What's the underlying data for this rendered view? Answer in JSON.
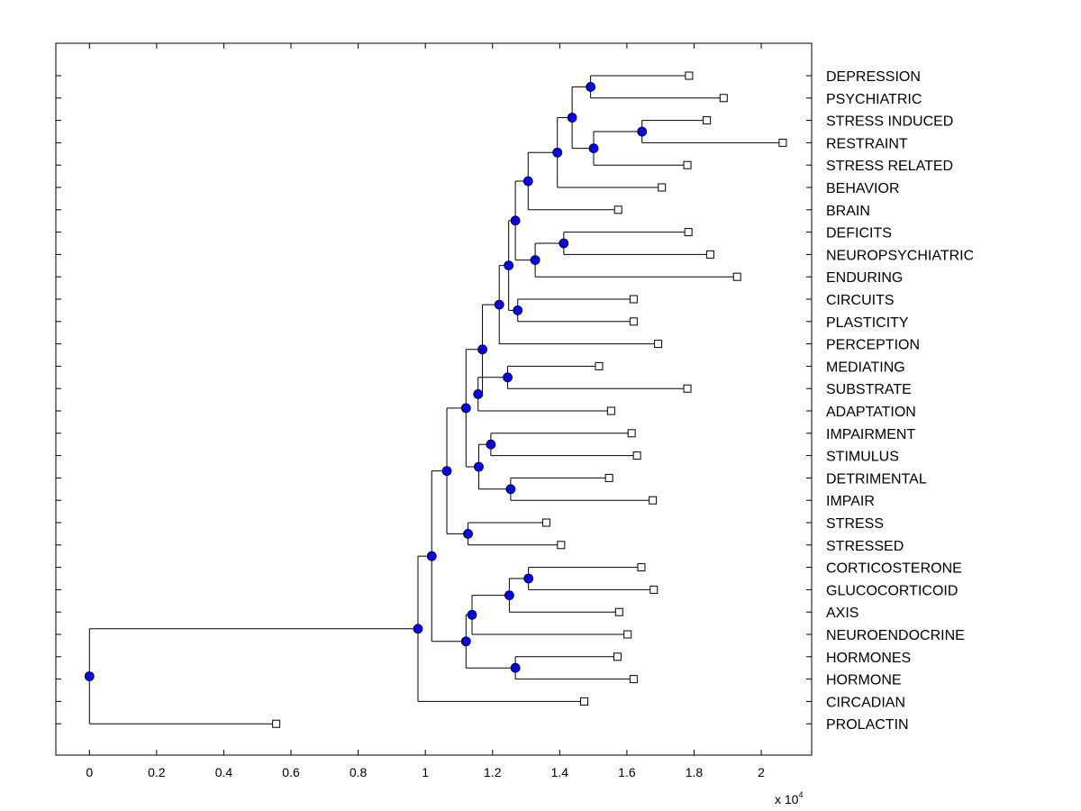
{
  "chart_data": {
    "type": "dendrogram",
    "x_axis": {
      "range": [
        -0.1,
        2.15
      ],
      "ticks": [
        0,
        0.2,
        0.4,
        0.6,
        0.8,
        1,
        1.2,
        1.4,
        1.6,
        1.8,
        2
      ],
      "tick_labels": [
        "0",
        "0.2",
        "0.4",
        "0.6",
        "0.8",
        "1",
        "1.2",
        "1.4",
        "1.6",
        "1.8",
        "2"
      ],
      "exponent_prefix": "x 10",
      "exponent_power": "4"
    },
    "leaves": [
      {
        "id": "l1",
        "label": "DEPRESSION",
        "x": 1.785
      },
      {
        "id": "l2",
        "label": "PSYCHIATRIC",
        "x": 1.888
      },
      {
        "id": "l3",
        "label": "STRESS INDUCED",
        "x": 1.838
      },
      {
        "id": "l4",
        "label": "RESTRAINT",
        "x": 2.064
      },
      {
        "id": "l5",
        "label": "STRESS RELATED",
        "x": 1.78
      },
      {
        "id": "l6",
        "label": "BEHAVIOR",
        "x": 1.704
      },
      {
        "id": "l7",
        "label": "BRAIN",
        "x": 1.574
      },
      {
        "id": "l8",
        "label": "DEFICITS",
        "x": 1.783
      },
      {
        "id": "l9",
        "label": "NEUROPSYCHIATRIC",
        "x": 1.848
      },
      {
        "id": "l10",
        "label": "ENDURING",
        "x": 1.928
      },
      {
        "id": "l11",
        "label": "CIRCUITS",
        "x": 1.62
      },
      {
        "id": "l12",
        "label": "PLASTICITY",
        "x": 1.62
      },
      {
        "id": "l13",
        "label": "PERCEPTION",
        "x": 1.693
      },
      {
        "id": "l14",
        "label": "MEDIATING",
        "x": 1.517
      },
      {
        "id": "l15",
        "label": "SUBSTRATE",
        "x": 1.78
      },
      {
        "id": "l16",
        "label": "ADAPTATION",
        "x": 1.553
      },
      {
        "id": "l17",
        "label": "IMPAIRMENT",
        "x": 1.614
      },
      {
        "id": "l18",
        "label": "STIMULUS",
        "x": 1.63
      },
      {
        "id": "l19",
        "label": "DETRIMENTAL",
        "x": 1.547
      },
      {
        "id": "l20",
        "label": "IMPAIR",
        "x": 1.677
      },
      {
        "id": "l21",
        "label": "STRESS",
        "x": 1.36
      },
      {
        "id": "l22",
        "label": "STRESSED",
        "x": 1.404
      },
      {
        "id": "l23",
        "label": "CORTICOSTERONE",
        "x": 1.643
      },
      {
        "id": "l24",
        "label": "GLUCOCORTICOID",
        "x": 1.68
      },
      {
        "id": "l25",
        "label": "AXIS",
        "x": 1.577
      },
      {
        "id": "l26",
        "label": "NEUROENDOCRINE",
        "x": 1.602
      },
      {
        "id": "l27",
        "label": "HORMONES",
        "x": 1.572
      },
      {
        "id": "l28",
        "label": "HORMONE",
        "x": 1.62
      },
      {
        "id": "l29",
        "label": "CIRCADIAN",
        "x": 1.473
      },
      {
        "id": "l30",
        "label": "PROLACTIN",
        "x": 0.556
      }
    ],
    "merges": [
      {
        "id": "n1",
        "x": 1.492,
        "children": [
          "l1",
          "l2"
        ]
      },
      {
        "id": "n2",
        "x": 1.645,
        "children": [
          "l3",
          "l4"
        ]
      },
      {
        "id": "n3",
        "x": 1.501,
        "children": [
          "n2",
          "l5"
        ]
      },
      {
        "id": "n4",
        "x": 1.437,
        "children": [
          "n1",
          "n3"
        ]
      },
      {
        "id": "n5",
        "x": 1.393,
        "children": [
          "n4",
          "l6"
        ]
      },
      {
        "id": "n6",
        "x": 1.306,
        "children": [
          "n5",
          "l7"
        ]
      },
      {
        "id": "n7",
        "x": 1.412,
        "children": [
          "l8",
          "l9"
        ]
      },
      {
        "id": "n8",
        "x": 1.327,
        "children": [
          "n7",
          "l10"
        ]
      },
      {
        "id": "n9",
        "x": 1.268,
        "children": [
          "n6",
          "n8"
        ]
      },
      {
        "id": "n10",
        "x": 1.275,
        "children": [
          "l11",
          "l12"
        ]
      },
      {
        "id": "n11",
        "x": 1.248,
        "children": [
          "n9",
          "n10"
        ]
      },
      {
        "id": "n12",
        "x": 1.22,
        "children": [
          "n11",
          "l13"
        ]
      },
      {
        "id": "n13",
        "x": 1.245,
        "children": [
          "l14",
          "l15"
        ]
      },
      {
        "id": "n14",
        "x": 1.157,
        "children": [
          "n13",
          "l16"
        ]
      },
      {
        "id": "n15",
        "x": 1.17,
        "children": [
          "n12",
          "n14"
        ]
      },
      {
        "id": "n16",
        "x": 1.195,
        "children": [
          "l17",
          "l18"
        ]
      },
      {
        "id": "n17",
        "x": 1.254,
        "children": [
          "l19",
          "l20"
        ]
      },
      {
        "id": "n18",
        "x": 1.159,
        "children": [
          "n16",
          "n17"
        ]
      },
      {
        "id": "n19",
        "x": 1.121,
        "children": [
          "n15",
          "n18"
        ]
      },
      {
        "id": "n20",
        "x": 1.127,
        "children": [
          "l21",
          "l22"
        ]
      },
      {
        "id": "n21",
        "x": 1.064,
        "children": [
          "n19",
          "n20"
        ]
      },
      {
        "id": "n22",
        "x": 1.307,
        "children": [
          "l23",
          "l24"
        ]
      },
      {
        "id": "n23",
        "x": 1.25,
        "children": [
          "n22",
          "l25"
        ]
      },
      {
        "id": "n24",
        "x": 1.139,
        "children": [
          "n23",
          "l26"
        ]
      },
      {
        "id": "n25",
        "x": 1.268,
        "children": [
          "l27",
          "l28"
        ]
      },
      {
        "id": "n26",
        "x": 1.121,
        "children": [
          "n24",
          "n25"
        ]
      },
      {
        "id": "n27",
        "x": 1.019,
        "children": [
          "n21",
          "n26"
        ]
      },
      {
        "id": "n28",
        "x": 0.978,
        "children": [
          "n27",
          "l29"
        ]
      },
      {
        "id": "n29",
        "x": 0.0,
        "children": [
          "n28",
          "l30"
        ]
      }
    ],
    "colors": {
      "node_fill": "#0000ff",
      "line": "#000000",
      "leaf_marker_fill": "#ffffff"
    }
  }
}
